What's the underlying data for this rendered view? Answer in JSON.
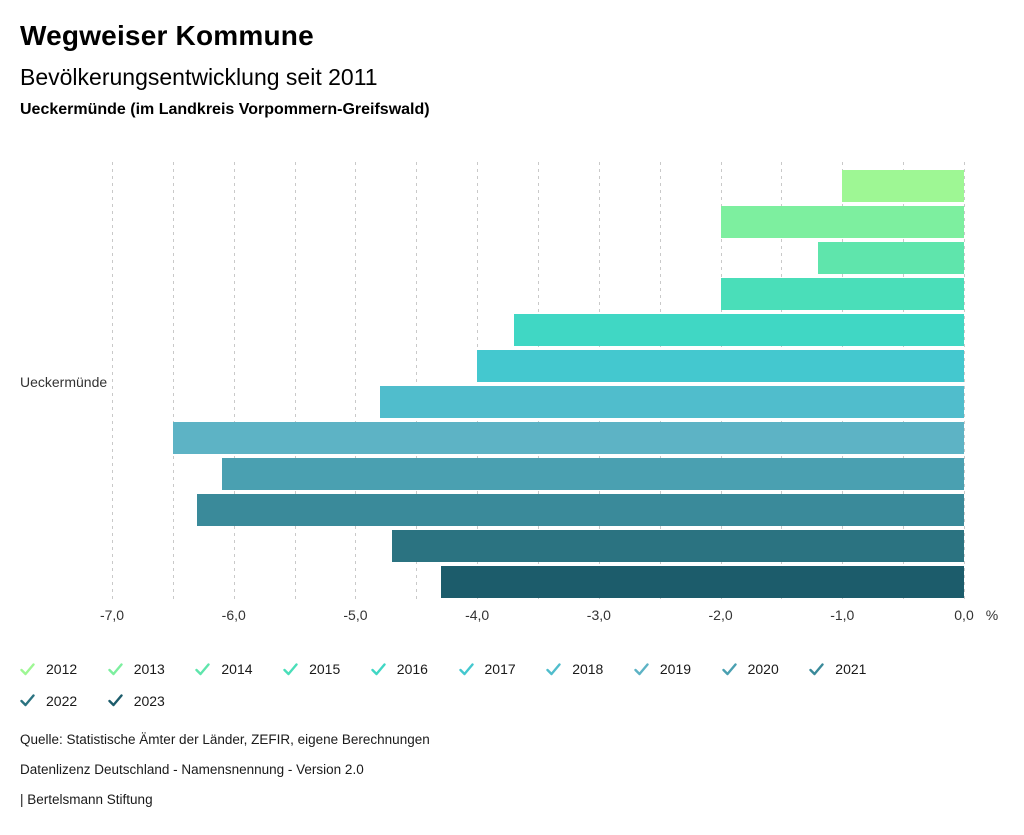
{
  "header": {
    "title": "Wegweiser Kommune",
    "subtitle": "Bevölkerungsentwicklung seit 2011",
    "region_line": "Ueckermünde (im Landkreis Vorpommern-Greifswald)"
  },
  "chart_data": {
    "type": "bar",
    "orientation": "horizontal",
    "title": "Bevölkerungsentwicklung seit 2011",
    "subtitle": "Ueckermünde (im Landkreis Vorpommern-Greifswald)",
    "category_label": "Ueckermünde",
    "unit_label": "%",
    "xlim": [
      -7,
      0
    ],
    "grid": true,
    "grid_step": 0.5,
    "tick_step": 1,
    "tick_labels": [
      "-7,0",
      "-6,0",
      "-5,0",
      "-4,0",
      "-3,0",
      "-2,0",
      "-1,0",
      "0,0"
    ],
    "legend_position": "bottom",
    "series": [
      {
        "year": "2012",
        "value": -1.0,
        "color": "#9ef794"
      },
      {
        "year": "2013",
        "value": -2.0,
        "color": "#7def9f"
      },
      {
        "year": "2014",
        "value": -1.2,
        "color": "#5fe5ac"
      },
      {
        "year": "2015",
        "value": -2.0,
        "color": "#4adeb9"
      },
      {
        "year": "2016",
        "value": -3.7,
        "color": "#40d7c4"
      },
      {
        "year": "2017",
        "value": -4.0,
        "color": "#44c8cf"
      },
      {
        "year": "2018",
        "value": -4.8,
        "color": "#50bdcc"
      },
      {
        "year": "2019",
        "value": -6.5,
        "color": "#5db3c5"
      },
      {
        "year": "2020",
        "value": -6.1,
        "color": "#4aa0b1"
      },
      {
        "year": "2021",
        "value": -6.3,
        "color": "#3a8a9a"
      },
      {
        "year": "2022",
        "value": -4.7,
        "color": "#2b7381"
      },
      {
        "year": "2023",
        "value": -4.3,
        "color": "#1c5c6b"
      }
    ]
  },
  "footer": {
    "source": "Quelle: Statistische Ämter der Länder, ZEFIR, eigene Berechnungen",
    "license": "Datenlizenz Deutschland - Namensnennung - Version 2.0",
    "attribution": "| Bertelsmann Stiftung"
  }
}
